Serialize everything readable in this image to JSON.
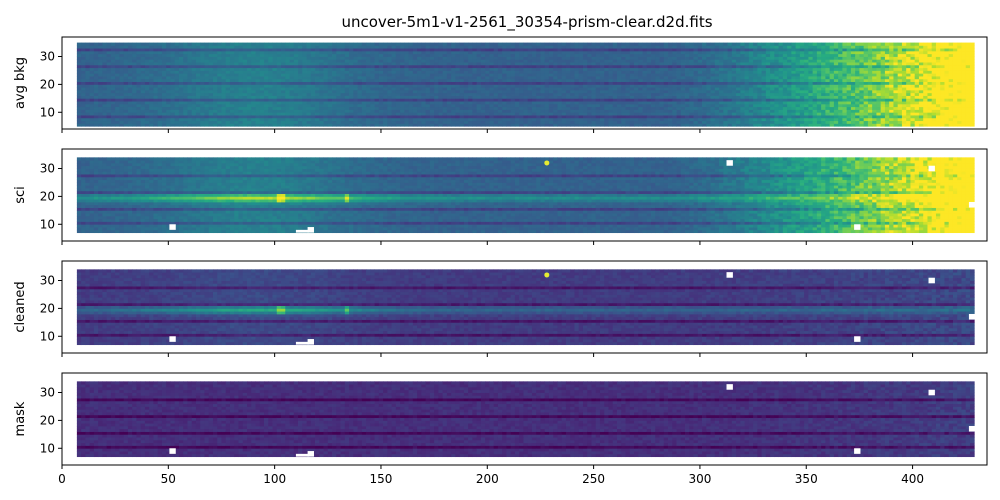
{
  "figure": {
    "title": "uncover-5m1-v1-2561_30354-prism-clear.d2d.fits"
  },
  "chart_data": {
    "type": "heatmap",
    "colormap": "viridis",
    "shared_x": true,
    "xlim": [
      0,
      435
    ],
    "x_ticks": [
      0,
      50,
      100,
      150,
      200,
      250,
      300,
      350,
      400
    ],
    "panels": [
      {
        "ylabel": "avg bkg",
        "ylim": [
          4,
          37
        ],
        "y_ticks": [
          10,
          20,
          30
        ],
        "x_extent": [
          7,
          428
        ],
        "y_extent": [
          5,
          35
        ],
        "has_masked_pixels": false,
        "has_hot_pixel": false,
        "trace_row": 0,
        "trace_strength": 0.08,
        "red_background_ramp": 1.0,
        "stripe_rows": [
          8,
          14,
          20,
          26,
          32
        ]
      },
      {
        "ylabel": "sci",
        "ylim": [
          4,
          37
        ],
        "y_ticks": [
          10,
          20,
          30
        ],
        "x_extent": [
          7,
          428
        ],
        "y_extent": [
          7,
          34
        ],
        "has_masked_pixels": true,
        "has_hot_pixel": true,
        "hot_pixel": [
          228,
          32
        ],
        "trace_row": 19,
        "trace_strength": 0.35,
        "red_background_ramp": 1.0,
        "stripe_rows": [
          10,
          15,
          21,
          27
        ]
      },
      {
        "ylabel": "cleaned",
        "ylim": [
          4,
          37
        ],
        "y_ticks": [
          10,
          20,
          30
        ],
        "x_extent": [
          7,
          428
        ],
        "y_extent": [
          7,
          34
        ],
        "has_masked_pixels": true,
        "has_hot_pixel": true,
        "hot_pixel": [
          228,
          32
        ],
        "trace_row": 19,
        "trace_strength": 0.3,
        "red_background_ramp": 0.12,
        "stripe_rows": [
          10,
          15,
          21,
          27
        ]
      },
      {
        "ylabel": "mask",
        "ylim": [
          4,
          37
        ],
        "y_ticks": [
          10,
          20,
          30
        ],
        "x_extent": [
          7,
          428
        ],
        "y_extent": [
          7,
          34
        ],
        "has_masked_pixels": true,
        "has_hot_pixel": false,
        "trace_row": 0,
        "trace_strength": 0.0,
        "red_background_ramp": 0.1,
        "stripe_rows": [
          10,
          15,
          21,
          27
        ]
      }
    ],
    "masked_pixels": [
      [
        52,
        9
      ],
      [
        117,
        8
      ],
      [
        314,
        32
      ],
      [
        374,
        9
      ],
      [
        409,
        30
      ],
      [
        428,
        17
      ]
    ]
  }
}
